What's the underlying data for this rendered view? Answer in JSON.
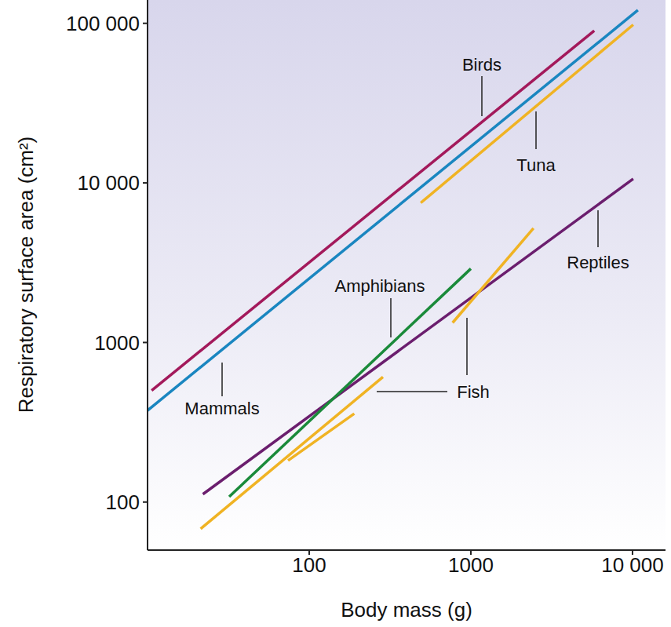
{
  "chart_data": {
    "type": "line",
    "log": true,
    "grid": false,
    "xlabel": "Body mass (g)",
    "ylabel": "Respiratory surface area (cm²)",
    "xlim": [
      10,
      16000
    ],
    "ylim": [
      50,
      140000
    ],
    "xticks": [
      100,
      1000,
      {
        "value": 10000,
        "label": "10 000"
      }
    ],
    "yticks": [
      100,
      1000,
      {
        "value": 10000,
        "label": "10 000"
      },
      {
        "value": 100000,
        "label": "100 000"
      }
    ],
    "series": [
      {
        "name": "Birds",
        "color": "#a3195b",
        "x": [
          10.6,
          5800
        ],
        "values": [
          500,
          90000
        ]
      },
      {
        "name": "Mammals",
        "color": "#1a86c0",
        "x": [
          10,
          10800
        ],
        "values": [
          375,
          121000
        ]
      },
      {
        "name": "Tuna",
        "color": "#f0b323",
        "x": [
          490,
          10100
        ],
        "values": [
          7500,
          98000
        ]
      },
      {
        "name": "Reptiles",
        "color": "#6b1e6e",
        "x": [
          22,
          10100
        ],
        "values": [
          112,
          10600
        ]
      },
      {
        "name": "Amphibians",
        "color": "#1a8a3a",
        "x": [
          32,
          1000
        ],
        "values": [
          108,
          2900
        ]
      },
      {
        "name": "Fish",
        "color": "#f0b323",
        "x": [
          21.3,
          286,
          null,
          74,
          190,
          null,
          771,
          2440
        ],
        "values": [
          68,
          608,
          null,
          182,
          358,
          null,
          1330,
          5200
        ]
      }
    ]
  }
}
